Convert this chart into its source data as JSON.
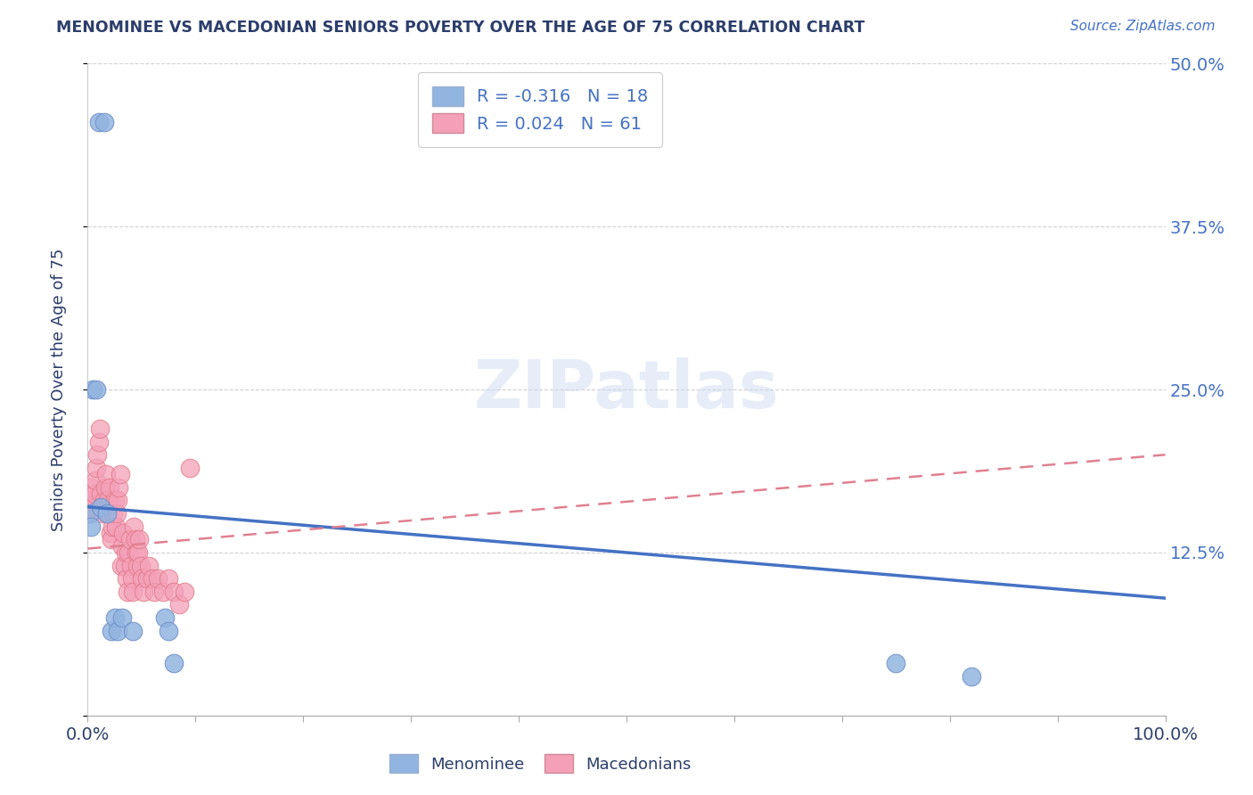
{
  "title": "MENOMINEE VS MACEDONIAN SENIORS POVERTY OVER THE AGE OF 75 CORRELATION CHART",
  "source": "Source: ZipAtlas.com",
  "ylabel": "Seniors Poverty Over the Age of 75",
  "xlim": [
    0,
    1.0
  ],
  "ylim": [
    0,
    0.5
  ],
  "legend_r1": "R = -0.316   N = 18",
  "legend_r2": "R = 0.024   N = 61",
  "menominee_color": "#92b4e0",
  "macedonian_color": "#f4a0b8",
  "menominee_color_edge": "#7090c8",
  "macedonian_color_edge": "#e07888",
  "blue_line_color": "#4472c4",
  "pink_line_color": "#e08090",
  "menominee_x": [
    0.01,
    0.015,
    0.005,
    0.008,
    0.002,
    0.003,
    0.012,
    0.018,
    0.022,
    0.025,
    0.028,
    0.032,
    0.042,
    0.072,
    0.075,
    0.08,
    0.75,
    0.82
  ],
  "menominee_y": [
    0.455,
    0.455,
    0.25,
    0.25,
    0.155,
    0.145,
    0.16,
    0.155,
    0.065,
    0.075,
    0.065,
    0.075,
    0.065,
    0.075,
    0.065,
    0.04,
    0.04,
    0.03
  ],
  "macedonian_x": [
    0.001,
    0.002,
    0.003,
    0.005,
    0.006,
    0.007,
    0.008,
    0.009,
    0.01,
    0.011,
    0.012,
    0.013,
    0.014,
    0.015,
    0.016,
    0.017,
    0.018,
    0.019,
    0.02,
    0.021,
    0.022,
    0.023,
    0.024,
    0.025,
    0.026,
    0.027,
    0.028,
    0.029,
    0.03,
    0.031,
    0.032,
    0.033,
    0.034,
    0.035,
    0.036,
    0.037,
    0.038,
    0.039,
    0.04,
    0.041,
    0.042,
    0.043,
    0.044,
    0.045,
    0.046,
    0.047,
    0.048,
    0.049,
    0.05,
    0.052,
    0.055,
    0.057,
    0.06,
    0.062,
    0.065,
    0.07,
    0.075,
    0.08,
    0.085,
    0.09,
    0.095
  ],
  "macedonian_y": [
    0.155,
    0.165,
    0.175,
    0.16,
    0.17,
    0.18,
    0.19,
    0.2,
    0.21,
    0.22,
    0.17,
    0.16,
    0.155,
    0.165,
    0.175,
    0.185,
    0.155,
    0.165,
    0.175,
    0.14,
    0.135,
    0.145,
    0.155,
    0.165,
    0.145,
    0.155,
    0.165,
    0.175,
    0.185,
    0.115,
    0.13,
    0.14,
    0.115,
    0.125,
    0.105,
    0.095,
    0.125,
    0.135,
    0.115,
    0.105,
    0.095,
    0.145,
    0.135,
    0.125,
    0.115,
    0.125,
    0.135,
    0.115,
    0.105,
    0.095,
    0.105,
    0.115,
    0.105,
    0.095,
    0.105,
    0.095,
    0.105,
    0.095,
    0.085,
    0.095,
    0.19
  ],
  "men_line_x0": 0.0,
  "men_line_y0": 0.16,
  "men_line_x1": 1.0,
  "men_line_y1": 0.09,
  "mac_line_x0": 0.0,
  "mac_line_y0": 0.128,
  "mac_line_x1": 1.0,
  "mac_line_y1": 0.2,
  "background_color": "#ffffff",
  "grid_color": "#cccccc",
  "title_color": "#2c3e6b",
  "source_color": "#4472c4",
  "label_color": "#2c3e6b",
  "tick_color_right": "#4472c4",
  "tick_color_bottom": "#2c3e6b"
}
